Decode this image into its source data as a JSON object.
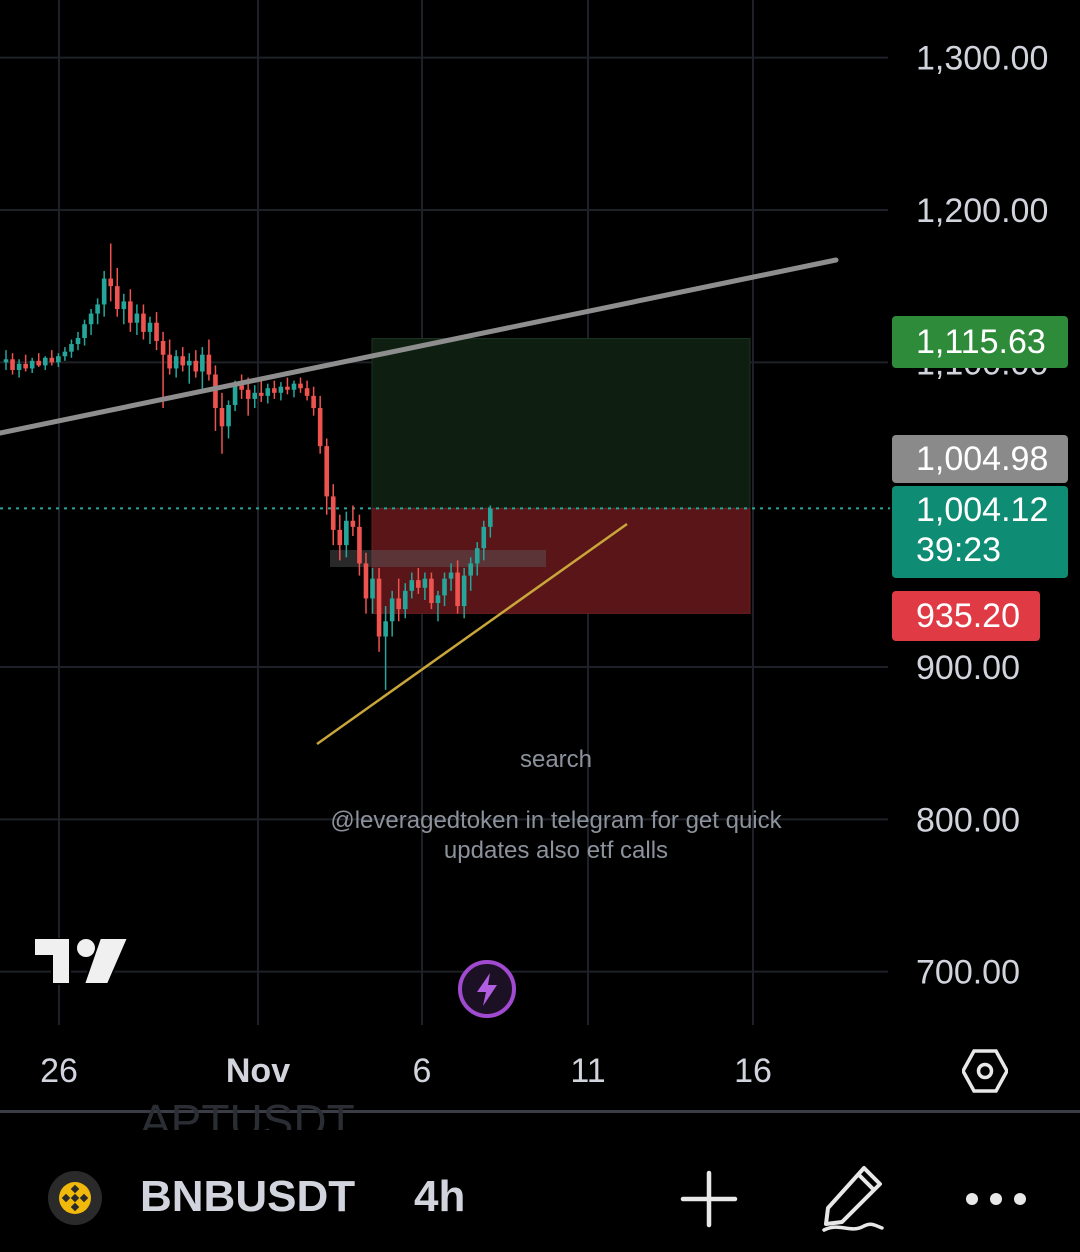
{
  "chart_data": {
    "type": "candlestick",
    "symbol": "BNBUSDT",
    "interval": "4h",
    "y_ticks": [
      "1,300.00",
      "1,200.00",
      "1,100.00",
      "900.00",
      "800.00",
      "700.00"
    ],
    "y_range": [
      665,
      1340
    ],
    "x_ticks": [
      "26",
      "Nov",
      "6",
      "11",
      "16"
    ],
    "current_price": "1,004.12",
    "countdown": "39:23",
    "last_price": "1,004.98",
    "take_profit": "1,115.63",
    "stop_loss": "935.20",
    "candles": [
      {
        "o": 1100,
        "h": 1108,
        "l": 1095,
        "c": 1102
      },
      {
        "o": 1102,
        "h": 1106,
        "l": 1092,
        "c": 1095
      },
      {
        "o": 1095,
        "h": 1102,
        "l": 1090,
        "c": 1099
      },
      {
        "o": 1099,
        "h": 1105,
        "l": 1094,
        "c": 1096
      },
      {
        "o": 1096,
        "h": 1103,
        "l": 1093,
        "c": 1101
      },
      {
        "o": 1101,
        "h": 1106,
        "l": 1097,
        "c": 1098
      },
      {
        "o": 1098,
        "h": 1104,
        "l": 1095,
        "c": 1103
      },
      {
        "o": 1103,
        "h": 1108,
        "l": 1098,
        "c": 1100
      },
      {
        "o": 1100,
        "h": 1106,
        "l": 1097,
        "c": 1104
      },
      {
        "o": 1104,
        "h": 1110,
        "l": 1101,
        "c": 1107
      },
      {
        "o": 1107,
        "h": 1115,
        "l": 1103,
        "c": 1112
      },
      {
        "o": 1112,
        "h": 1120,
        "l": 1108,
        "c": 1116
      },
      {
        "o": 1116,
        "h": 1128,
        "l": 1111,
        "c": 1125
      },
      {
        "o": 1125,
        "h": 1135,
        "l": 1118,
        "c": 1132
      },
      {
        "o": 1132,
        "h": 1142,
        "l": 1125,
        "c": 1138
      },
      {
        "o": 1138,
        "h": 1160,
        "l": 1130,
        "c": 1155
      },
      {
        "o": 1155,
        "h": 1178,
        "l": 1140,
        "c": 1150
      },
      {
        "o": 1150,
        "h": 1162,
        "l": 1130,
        "c": 1135
      },
      {
        "o": 1135,
        "h": 1145,
        "l": 1125,
        "c": 1140
      },
      {
        "o": 1140,
        "h": 1148,
        "l": 1120,
        "c": 1126
      },
      {
        "o": 1126,
        "h": 1138,
        "l": 1118,
        "c": 1132
      },
      {
        "o": 1132,
        "h": 1138,
        "l": 1115,
        "c": 1120
      },
      {
        "o": 1120,
        "h": 1130,
        "l": 1112,
        "c": 1126
      },
      {
        "o": 1126,
        "h": 1133,
        "l": 1108,
        "c": 1114
      },
      {
        "o": 1114,
        "h": 1120,
        "l": 1070,
        "c": 1105
      },
      {
        "o": 1105,
        "h": 1115,
        "l": 1092,
        "c": 1096
      },
      {
        "o": 1096,
        "h": 1108,
        "l": 1090,
        "c": 1104
      },
      {
        "o": 1104,
        "h": 1110,
        "l": 1094,
        "c": 1098
      },
      {
        "o": 1098,
        "h": 1106,
        "l": 1086,
        "c": 1101
      },
      {
        "o": 1101,
        "h": 1108,
        "l": 1090,
        "c": 1094
      },
      {
        "o": 1094,
        "h": 1110,
        "l": 1080,
        "c": 1105
      },
      {
        "o": 1105,
        "h": 1115,
        "l": 1088,
        "c": 1092
      },
      {
        "o": 1092,
        "h": 1098,
        "l": 1055,
        "c": 1070
      },
      {
        "o": 1070,
        "h": 1080,
        "l": 1040,
        "c": 1058
      },
      {
        "o": 1058,
        "h": 1075,
        "l": 1050,
        "c": 1072
      },
      {
        "o": 1072,
        "h": 1088,
        "l": 1068,
        "c": 1085
      },
      {
        "o": 1085,
        "h": 1092,
        "l": 1076,
        "c": 1082
      },
      {
        "o": 1082,
        "h": 1090,
        "l": 1065,
        "c": 1076
      },
      {
        "o": 1076,
        "h": 1085,
        "l": 1070,
        "c": 1080
      },
      {
        "o": 1080,
        "h": 1088,
        "l": 1074,
        "c": 1078
      },
      {
        "o": 1078,
        "h": 1086,
        "l": 1073,
        "c": 1083
      },
      {
        "o": 1083,
        "h": 1088,
        "l": 1076,
        "c": 1080
      },
      {
        "o": 1080,
        "h": 1087,
        "l": 1075,
        "c": 1084
      },
      {
        "o": 1084,
        "h": 1090,
        "l": 1079,
        "c": 1082
      },
      {
        "o": 1082,
        "h": 1088,
        "l": 1077,
        "c": 1086
      },
      {
        "o": 1086,
        "h": 1090,
        "l": 1080,
        "c": 1083
      },
      {
        "o": 1083,
        "h": 1088,
        "l": 1075,
        "c": 1078
      },
      {
        "o": 1078,
        "h": 1084,
        "l": 1065,
        "c": 1070
      },
      {
        "o": 1070,
        "h": 1078,
        "l": 1040,
        "c": 1045
      },
      {
        "o": 1045,
        "h": 1050,
        "l": 1000,
        "c": 1012
      },
      {
        "o": 1012,
        "h": 1020,
        "l": 980,
        "c": 990
      },
      {
        "o": 990,
        "h": 1000,
        "l": 970,
        "c": 980
      },
      {
        "o": 980,
        "h": 1002,
        "l": 972,
        "c": 996
      },
      {
        "o": 996,
        "h": 1006,
        "l": 986,
        "c": 992
      },
      {
        "o": 992,
        "h": 1000,
        "l": 960,
        "c": 968
      },
      {
        "o": 968,
        "h": 975,
        "l": 935,
        "c": 945
      },
      {
        "o": 945,
        "h": 965,
        "l": 935,
        "c": 958
      },
      {
        "o": 958,
        "h": 965,
        "l": 910,
        "c": 920
      },
      {
        "o": 920,
        "h": 940,
        "l": 885,
        "c": 930
      },
      {
        "o": 930,
        "h": 950,
        "l": 920,
        "c": 945
      },
      {
        "o": 945,
        "h": 958,
        "l": 930,
        "c": 938
      },
      {
        "o": 938,
        "h": 955,
        "l": 932,
        "c": 950
      },
      {
        "o": 950,
        "h": 962,
        "l": 945,
        "c": 957
      },
      {
        "o": 957,
        "h": 965,
        "l": 948,
        "c": 952
      },
      {
        "o": 952,
        "h": 962,
        "l": 944,
        "c": 958
      },
      {
        "o": 958,
        "h": 962,
        "l": 938,
        "c": 942
      },
      {
        "o": 942,
        "h": 950,
        "l": 930,
        "c": 947
      },
      {
        "o": 947,
        "h": 962,
        "l": 940,
        "c": 958
      },
      {
        "o": 958,
        "h": 968,
        "l": 950,
        "c": 962
      },
      {
        "o": 962,
        "h": 970,
        "l": 935,
        "c": 940
      },
      {
        "o": 940,
        "h": 965,
        "l": 932,
        "c": 960
      },
      {
        "o": 960,
        "h": 972,
        "l": 950,
        "c": 968
      },
      {
        "o": 968,
        "h": 982,
        "l": 960,
        "c": 978
      },
      {
        "o": 978,
        "h": 996,
        "l": 970,
        "c": 992
      },
      {
        "o": 992,
        "h": 1006,
        "l": 985,
        "c": 1004
      }
    ]
  },
  "watermark": {
    "search": "search",
    "promo_line1": "@leveragedtoken in telegram for get quick",
    "promo_line2": "updates also etf calls"
  },
  "bottom_bar": {
    "ghost_ticker": "APTUSDT",
    "symbol": "BNBUSDT",
    "interval": "4h",
    "coin_icon": "bnb-coin-icon",
    "plus_icon": "plus-icon",
    "draw_icon": "pencil-icon",
    "more_icon": "more-dots-icon"
  },
  "colors": {
    "up": "#26a69a",
    "down": "#ef5350",
    "take_profit": "#2e8b3a",
    "stop_loss": "#e03a45",
    "current": "#0f8c74",
    "last": "#8a8a8a"
  }
}
